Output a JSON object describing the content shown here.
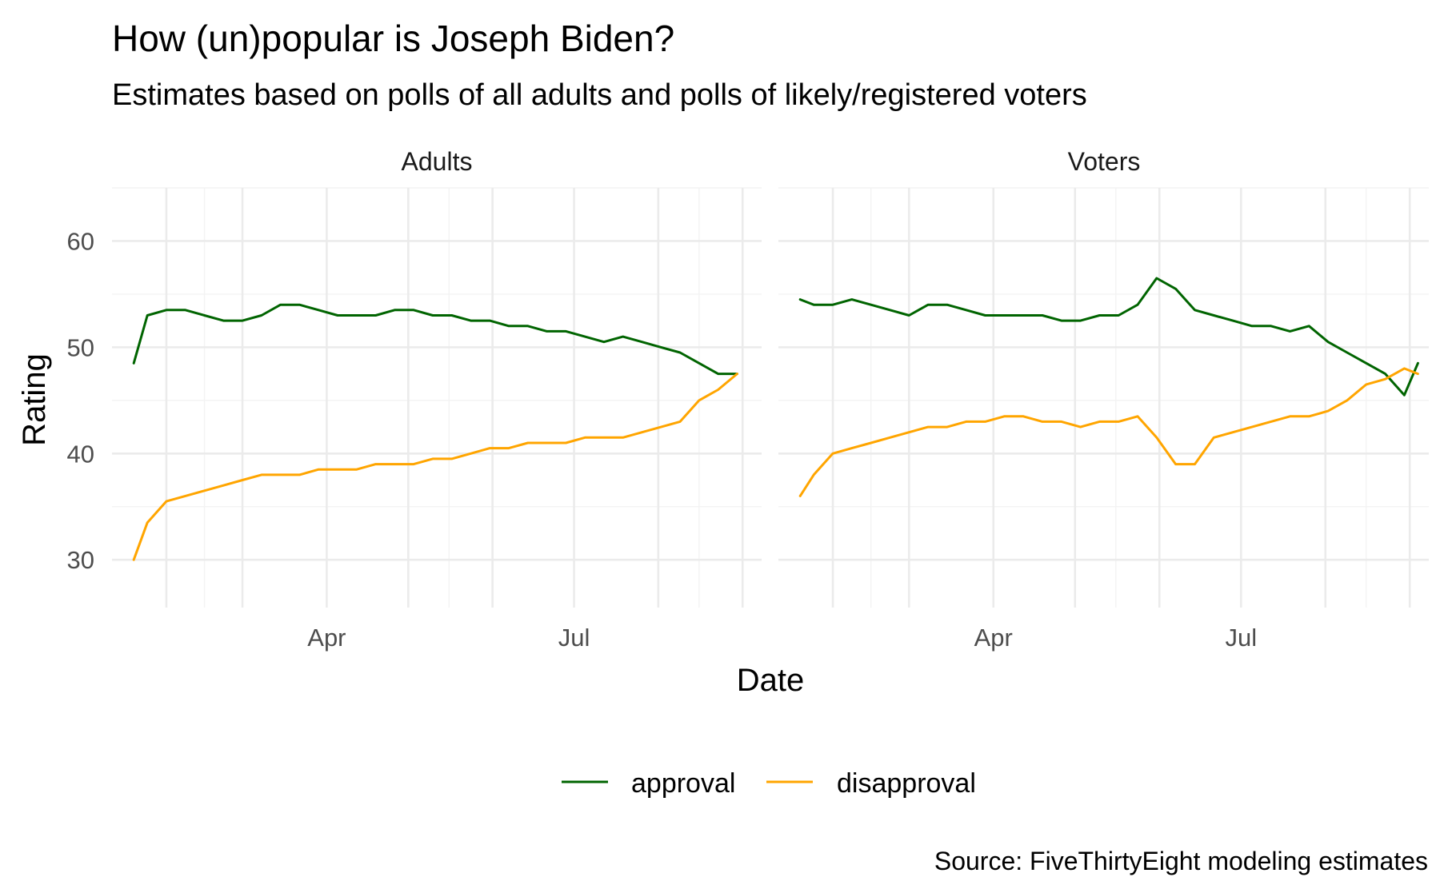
{
  "chart_data": {
    "type": "line",
    "title": "How (un)popular is Joseph Biden?",
    "subtitle": "Estimates based on polls of all adults and polls of likely/registered voters",
    "xlabel": "Date",
    "ylabel": "Rating",
    "caption": "Source: FiveThirtyEight modeling estimates",
    "x_ticks": [
      "Apr",
      "Jul"
    ],
    "y_ticks": [
      30,
      40,
      50,
      60
    ],
    "ylim": [
      25.5,
      65
    ],
    "xlim": [
      "2021-01-12",
      "2021-09-08"
    ],
    "grid": true,
    "legend_position": "bottom",
    "colors": {
      "approval": "#006400",
      "disapproval": "#FFA500"
    },
    "legend": [
      {
        "key": "approval",
        "label": "approval"
      },
      {
        "key": "disapproval",
        "label": "disapproval"
      }
    ],
    "panels": [
      {
        "name": "Adults",
        "series": [
          {
            "name": "approval",
            "x": [
              "2021-01-20",
              "2021-01-25",
              "2021-02-01",
              "2021-02-08",
              "2021-02-15",
              "2021-02-22",
              "2021-03-01",
              "2021-03-08",
              "2021-03-15",
              "2021-03-22",
              "2021-03-29",
              "2021-04-05",
              "2021-04-12",
              "2021-04-19",
              "2021-04-26",
              "2021-05-03",
              "2021-05-10",
              "2021-05-17",
              "2021-05-24",
              "2021-05-31",
              "2021-06-07",
              "2021-06-14",
              "2021-06-21",
              "2021-06-28",
              "2021-07-05",
              "2021-07-12",
              "2021-07-19",
              "2021-07-26",
              "2021-08-02",
              "2021-08-09",
              "2021-08-16",
              "2021-08-23",
              "2021-08-30"
            ],
            "y": [
              48.5,
              53.0,
              53.5,
              53.5,
              53.0,
              52.5,
              52.5,
              53.0,
              54.0,
              54.0,
              53.5,
              53.0,
              53.0,
              53.0,
              53.5,
              53.5,
              53.0,
              53.0,
              52.5,
              52.5,
              52.0,
              52.0,
              51.5,
              51.5,
              51.0,
              50.5,
              51.0,
              50.5,
              50.0,
              49.5,
              48.5,
              47.5,
              47.5
            ]
          },
          {
            "name": "disapproval",
            "x": [
              "2021-01-20",
              "2021-01-25",
              "2021-02-01",
              "2021-02-08",
              "2021-02-15",
              "2021-02-22",
              "2021-03-01",
              "2021-03-08",
              "2021-03-15",
              "2021-03-22",
              "2021-03-29",
              "2021-04-05",
              "2021-04-12",
              "2021-04-19",
              "2021-04-26",
              "2021-05-03",
              "2021-05-10",
              "2021-05-17",
              "2021-05-24",
              "2021-05-31",
              "2021-06-07",
              "2021-06-14",
              "2021-06-21",
              "2021-06-28",
              "2021-07-05",
              "2021-07-12",
              "2021-07-19",
              "2021-07-26",
              "2021-08-02",
              "2021-08-09",
              "2021-08-16",
              "2021-08-23",
              "2021-08-30"
            ],
            "y": [
              30.0,
              33.5,
              35.5,
              36.0,
              36.5,
              37.0,
              37.5,
              38.0,
              38.0,
              38.0,
              38.5,
              38.5,
              38.5,
              39.0,
              39.0,
              39.0,
              39.5,
              39.5,
              40.0,
              40.5,
              40.5,
              41.0,
              41.0,
              41.0,
              41.5,
              41.5,
              41.5,
              42.0,
              42.5,
              43.0,
              45.0,
              46.0,
              47.5
            ]
          }
        ]
      },
      {
        "name": "Voters",
        "series": [
          {
            "name": "approval",
            "x": [
              "2021-01-20",
              "2021-01-25",
              "2021-02-01",
              "2021-02-08",
              "2021-02-15",
              "2021-02-22",
              "2021-03-01",
              "2021-03-08",
              "2021-03-15",
              "2021-03-22",
              "2021-03-29",
              "2021-04-05",
              "2021-04-12",
              "2021-04-19",
              "2021-04-26",
              "2021-05-03",
              "2021-05-10",
              "2021-05-17",
              "2021-05-24",
              "2021-05-31",
              "2021-06-07",
              "2021-06-14",
              "2021-06-21",
              "2021-06-28",
              "2021-07-05",
              "2021-07-12",
              "2021-07-19",
              "2021-07-26",
              "2021-08-02",
              "2021-08-09",
              "2021-08-16",
              "2021-08-23",
              "2021-08-30",
              "2021-09-04"
            ],
            "y": [
              54.5,
              54.0,
              54.0,
              54.5,
              54.0,
              53.5,
              53.0,
              54.0,
              54.0,
              53.5,
              53.0,
              53.0,
              53.0,
              53.0,
              52.5,
              52.5,
              53.0,
              53.0,
              54.0,
              56.5,
              55.5,
              53.5,
              53.0,
              52.5,
              52.0,
              52.0,
              51.5,
              52.0,
              50.5,
              49.5,
              48.5,
              47.5,
              45.5,
              48.5
            ]
          },
          {
            "name": "disapproval",
            "x": [
              "2021-01-20",
              "2021-01-25",
              "2021-02-01",
              "2021-02-08",
              "2021-02-15",
              "2021-02-22",
              "2021-03-01",
              "2021-03-08",
              "2021-03-15",
              "2021-03-22",
              "2021-03-29",
              "2021-04-05",
              "2021-04-12",
              "2021-04-19",
              "2021-04-26",
              "2021-05-03",
              "2021-05-10",
              "2021-05-17",
              "2021-05-24",
              "2021-05-31",
              "2021-06-07",
              "2021-06-14",
              "2021-06-21",
              "2021-06-28",
              "2021-07-05",
              "2021-07-12",
              "2021-07-19",
              "2021-07-26",
              "2021-08-02",
              "2021-08-09",
              "2021-08-16",
              "2021-08-23",
              "2021-08-30",
              "2021-09-04"
            ],
            "y": [
              36.0,
              38.0,
              40.0,
              40.5,
              41.0,
              41.5,
              42.0,
              42.5,
              42.5,
              43.0,
              43.0,
              43.5,
              43.5,
              43.0,
              43.0,
              42.5,
              43.0,
              43.0,
              43.5,
              41.5,
              39.0,
              39.0,
              41.5,
              42.0,
              42.5,
              43.0,
              43.5,
              43.5,
              44.0,
              45.0,
              46.5,
              47.0,
              48.0,
              47.5
            ]
          }
        ]
      }
    ]
  }
}
